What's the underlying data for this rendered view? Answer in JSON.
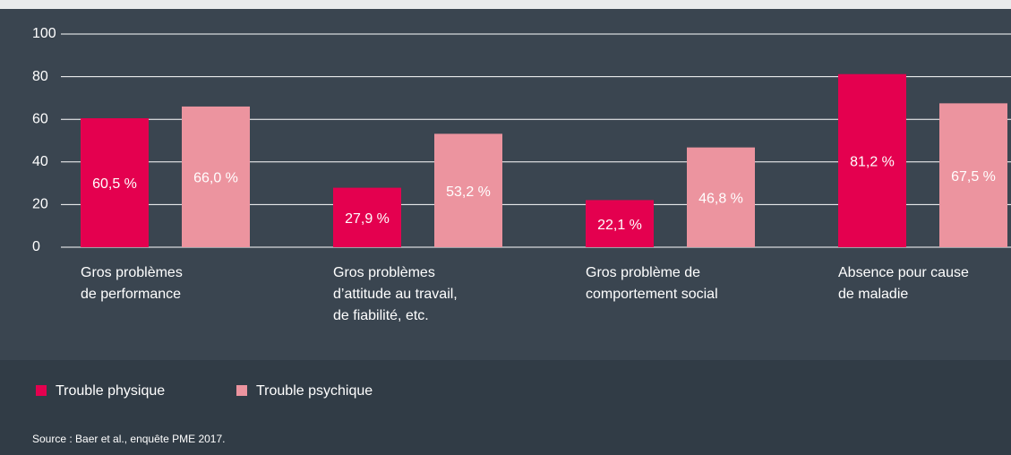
{
  "chart_data": {
    "type": "bar",
    "categories": [
      [
        "Gros problèmes",
        "de performance"
      ],
      [
        "Gros problèmes",
        "d’attitude au travail,",
        "de fiabilité, etc."
      ],
      [
        "Gros problème de",
        "comportement social"
      ],
      [
        "Absence pour cause",
        "de maladie"
      ]
    ],
    "series": [
      {
        "name": "Trouble physique",
        "color": "#e4004f",
        "values": [
          60.5,
          27.9,
          22.1,
          81.2
        ],
        "value_labels": [
          "60,5 %",
          "27,9 %",
          "22,1 %",
          "81,2 %"
        ]
      },
      {
        "name": "Trouble psychique",
        "color": "#ec949f",
        "values": [
          66.0,
          53.2,
          46.8,
          67.5
        ],
        "value_labels": [
          "66,0 %",
          "53,2 %",
          "46,8 %",
          "67,5 %"
        ]
      }
    ],
    "ylim": [
      0,
      100
    ],
    "yticks": [
      0,
      20,
      40,
      60,
      80,
      100
    ],
    "grid": true,
    "source": "Source : Baer et al., enquête PME 2017."
  }
}
